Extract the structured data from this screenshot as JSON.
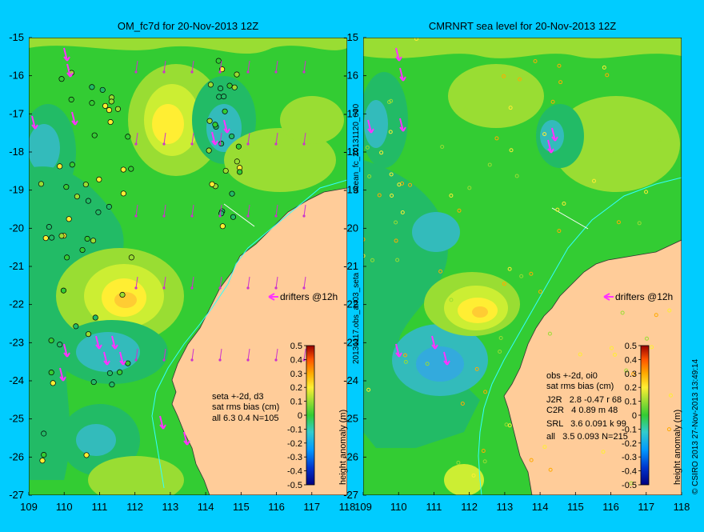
{
  "left_panel": {
    "title": "OM_fc7d for 20-Nov-2013 12Z",
    "drifters_label": "drifters @12h",
    "stats_lines": [
      "seta +-2d, d3",
      "sat rms bias (cm)",
      "all 6.3 0.4 N=105"
    ]
  },
  "right_panel": {
    "title": "CMRNRT sea level  for 20-Nov-2013 12Z",
    "drifters_label": "drifters @12h",
    "stats_lines": [
      "obs +-2d, oi0",
      "sat rms bias (cm)",
      "J2R   2.8 -0.47 r 68",
      "C2R   4 0.89 m 48",
      "SRL   3.6 0.091 k 99",
      "all   3.5 0.093 N=215"
    ]
  },
  "side_labels": {
    "middle_upper": "ocean_fc_20131120_000",
    "middle_lower": "20131117.obs_an03_seta",
    "right_edge": "© CSIRO 2013   27-Nov-2013 13:49:14"
  },
  "colorbar": {
    "label": "height anomaly (m)",
    "ticks": [
      "0.5",
      "0.4",
      "0.3",
      "0.2",
      "0.1",
      "0",
      "-0.1",
      "-0.2",
      "-0.3",
      "-0.4",
      "-0.5"
    ]
  },
  "colors": {
    "background": "#00ccff",
    "land": "#ffcc99",
    "ocean_base": "#33cc33",
    "drifter": "#ff33ff"
  },
  "chart_data": [
    {
      "type": "heatmap",
      "title": "OM_fc7d for 20-Nov-2013 12Z",
      "xlabel": "",
      "ylabel": "",
      "xlim": [
        109,
        118
      ],
      "ylim": [
        -27,
        -15
      ],
      "x_ticks": [
        109,
        110,
        111,
        112,
        113,
        114,
        115,
        116,
        117,
        118
      ],
      "y_ticks": [
        -15,
        -16,
        -17,
        -18,
        -19,
        -20,
        -21,
        -22,
        -23,
        -24,
        -25,
        -26,
        -27
      ],
      "color_range": [
        -0.5,
        0.5
      ],
      "colorbar_label": "height anomaly (m)"
    },
    {
      "type": "heatmap",
      "title": "CMRNRT sea level  for 20-Nov-2013 12Z",
      "xlabel": "",
      "ylabel": "",
      "xlim": [
        109,
        118
      ],
      "ylim": [
        -27,
        -15
      ],
      "x_ticks": [
        109,
        110,
        111,
        112,
        113,
        114,
        115,
        116,
        117,
        118
      ],
      "y_ticks": [
        -15,
        -16,
        -17,
        -18,
        -19,
        -20,
        -21,
        -22,
        -23,
        -24,
        -25,
        -26,
        -27
      ],
      "color_range": [
        -0.5,
        0.5
      ],
      "colorbar_label": "height anomaly (m)"
    }
  ]
}
